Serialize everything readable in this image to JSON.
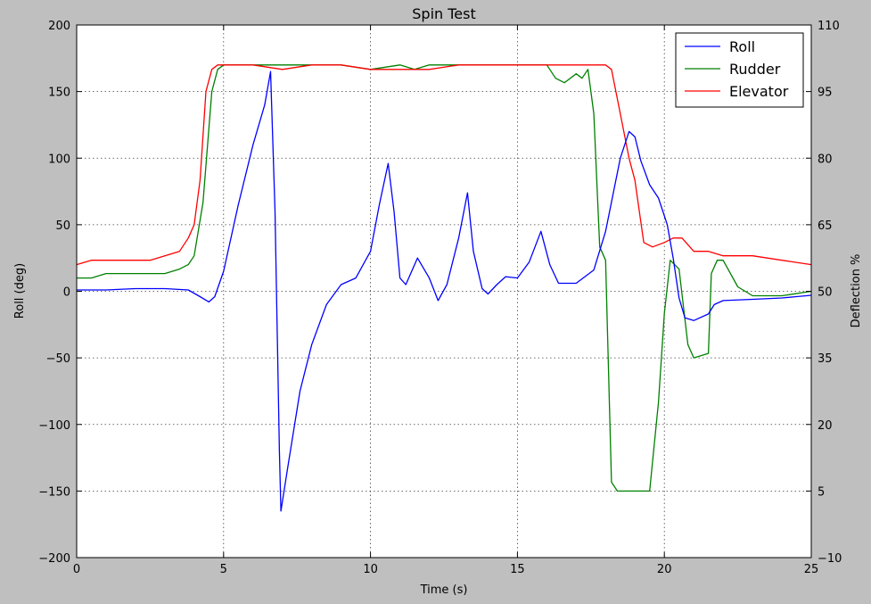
{
  "chart_data": {
    "type": "line",
    "title": "Spin Test",
    "xlabel": "Time (s)",
    "ylabel_left": "Roll (deg)",
    "ylabel_right": "Deflection %",
    "xlim": [
      0,
      25
    ],
    "ylim_left": [
      -200,
      200
    ],
    "ylim_right": [
      -10,
      110
    ],
    "xticks": [
      0,
      5,
      10,
      15,
      20,
      25
    ],
    "yticks_left": [
      -200,
      -150,
      -100,
      -50,
      0,
      50,
      100,
      150,
      200
    ],
    "yticks_right": [
      -10,
      5,
      20,
      35,
      50,
      65,
      80,
      95,
      110
    ],
    "grid": true,
    "legend_position": "top-right",
    "series": [
      {
        "name": "Roll",
        "axis": "left",
        "color": "#0000ff",
        "x": [
          0,
          1,
          2,
          3,
          3.8,
          4.2,
          4.5,
          4.7,
          5.0,
          5.5,
          6.0,
          6.4,
          6.6,
          6.75,
          6.9,
          6.95,
          7.2,
          7.6,
          8.0,
          8.5,
          9.0,
          9.5,
          10.0,
          10.3,
          10.6,
          10.8,
          11.0,
          11.2,
          11.6,
          12.0,
          12.3,
          12.6,
          13.0,
          13.3,
          13.5,
          13.8,
          14.0,
          14.3,
          14.6,
          15.0,
          15.4,
          15.8,
          16.1,
          16.4,
          17.0,
          17.6,
          18.0,
          18.5,
          18.8,
          19.0,
          19.2,
          19.5,
          19.8,
          20.1,
          20.3,
          20.5,
          20.7,
          21.0,
          21.5,
          21.7,
          22.0,
          23.0,
          24.0,
          25.0
        ],
        "y": [
          1,
          1,
          2,
          2,
          1,
          -4,
          -8,
          -4,
          15,
          65,
          110,
          140,
          165,
          60,
          -120,
          -165,
          -130,
          -75,
          -40,
          -10,
          5,
          10,
          30,
          65,
          96,
          60,
          10,
          5,
          25,
          10,
          -7,
          5,
          40,
          74,
          30,
          2,
          -2,
          5,
          11,
          10,
          22,
          45,
          20,
          6,
          6,
          16,
          45,
          100,
          120,
          116,
          98,
          80,
          70,
          50,
          25,
          -5,
          -20,
          -22,
          -17,
          -10,
          -7,
          -6,
          -5,
          -3
        ]
      },
      {
        "name": "Rudder",
        "axis": "right",
        "color": "#008000",
        "x": [
          0,
          0.5,
          1,
          2,
          2.5,
          3,
          3.5,
          3.8,
          4.0,
          4.3,
          4.6,
          4.8,
          5.0,
          6,
          7,
          8,
          9,
          10,
          11,
          11.5,
          12,
          13,
          14,
          15,
          16,
          16.3,
          16.6,
          17,
          17.2,
          17.4,
          17.6,
          17.8,
          18.0,
          18.2,
          18.4,
          18.6,
          19.0,
          19.2,
          19.5,
          19.8,
          20.0,
          20.2,
          20.5,
          20.8,
          21.0,
          21.5,
          21.6,
          21.8,
          22.0,
          22.5,
          23,
          24,
          25
        ],
        "y": [
          53,
          53,
          54,
          54,
          54,
          54,
          55,
          56,
          58,
          70,
          95,
          100,
          101,
          101,
          101,
          101,
          101,
          100,
          101,
          100,
          101,
          101,
          101,
          101,
          101,
          98,
          97,
          99,
          98,
          100,
          90,
          60,
          57,
          7,
          5,
          5,
          5,
          5,
          5,
          25,
          45,
          57,
          55,
          38,
          35,
          36,
          54,
          57,
          57,
          51,
          49,
          49,
          50
        ]
      },
      {
        "name": "Elevator",
        "axis": "right",
        "color": "#ff0000",
        "x": [
          0,
          0.5,
          1,
          1.5,
          2,
          2.5,
          3,
          3.5,
          3.8,
          4.0,
          4.2,
          4.4,
          4.6,
          4.8,
          5,
          6,
          7,
          8,
          9,
          10,
          11,
          12,
          13,
          14,
          15,
          16,
          17,
          17.5,
          18.0,
          18.2,
          18.5,
          18.8,
          19.0,
          19.3,
          19.6,
          20.0,
          20.3,
          20.6,
          21.0,
          21.5,
          22.0,
          23,
          24,
          25
        ],
        "y": [
          56,
          57,
          57,
          57,
          57,
          57,
          58,
          59,
          62,
          65,
          75,
          95,
          100,
          101,
          101,
          101,
          100,
          101,
          101,
          100,
          100,
          100,
          101,
          101,
          101,
          101,
          101,
          101,
          101,
          100,
          90,
          80,
          75,
          61,
          60,
          61,
          62,
          62,
          59,
          59,
          58,
          58,
          57,
          56
        ]
      }
    ]
  }
}
